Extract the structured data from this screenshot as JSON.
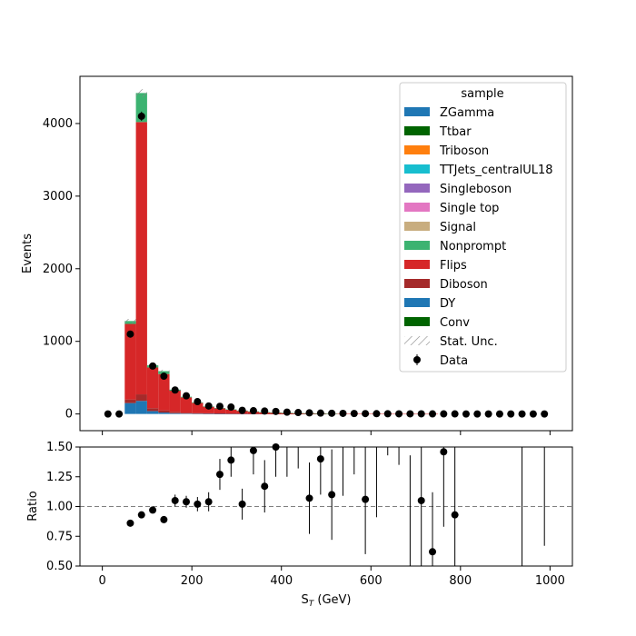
{
  "chart_data": [
    {
      "type": "bar",
      "stacked": true,
      "ylabel": "Events",
      "ylim": [
        -230,
        4650
      ],
      "xlim": [
        -50,
        1050
      ],
      "yticks": [
        0,
        1000,
        2000,
        3000,
        4000
      ],
      "bins": {
        "edges_start": 0,
        "width": 25,
        "count": 40
      },
      "legend": {
        "title": "sample",
        "placement": "top-right"
      },
      "legend_entries": [
        {
          "label": "ZGamma",
          "color": "#1f77b4",
          "kind": "patch"
        },
        {
          "label": "Ttbar",
          "color": "#006400",
          "kind": "patch"
        },
        {
          "label": "Triboson",
          "color": "#ff7f0e",
          "kind": "patch"
        },
        {
          "label": "TTJets_centralUL18",
          "color": "#17becf",
          "kind": "patch"
        },
        {
          "label": "Singleboson",
          "color": "#9467bd",
          "kind": "patch"
        },
        {
          "label": "Single top",
          "color": "#e377c2",
          "kind": "patch"
        },
        {
          "label": "Signal",
          "color": "#c8ad7f",
          "kind": "patch"
        },
        {
          "label": "Nonprompt",
          "color": "#3cb371",
          "kind": "patch"
        },
        {
          "label": "Flips",
          "color": "#d62728",
          "kind": "patch"
        },
        {
          "label": "Diboson",
          "color": "#a52a2a",
          "kind": "patch"
        },
        {
          "label": "DY",
          "color": "#1f77b4",
          "kind": "patch"
        },
        {
          "label": "Conv",
          "color": "#006400",
          "kind": "patch"
        },
        {
          "label": "Stat. Unc.",
          "color": "#888888",
          "kind": "hatch"
        },
        {
          "label": "Data",
          "color": "#000000",
          "kind": "errorbar"
        }
      ],
      "stack_order": [
        "DY",
        "Diboson",
        "Flips",
        "Nonprompt"
      ],
      "series": [
        {
          "name": "DY",
          "color": "#1f77b4",
          "values": [
            0,
            0,
            150,
            180,
            40,
            20,
            10,
            6,
            4,
            3,
            2,
            1,
            1,
            1,
            0,
            0,
            0,
            0,
            0,
            0,
            0,
            0,
            0,
            0,
            0,
            0,
            0,
            0,
            0,
            0,
            0,
            0,
            0,
            0,
            0,
            0,
            0,
            0,
            0,
            0
          ]
        },
        {
          "name": "Diboson",
          "color": "#a52a2a",
          "values": [
            0,
            0,
            50,
            90,
            40,
            30,
            20,
            12,
            8,
            6,
            5,
            4,
            3,
            2,
            2,
            1,
            1,
            1,
            1,
            1,
            0,
            0,
            0,
            0,
            0,
            0,
            0,
            0,
            0,
            0,
            0,
            0,
            0,
            0,
            0,
            0,
            0,
            0,
            0,
            0
          ]
        },
        {
          "name": "Flips",
          "color": "#d62728",
          "values": [
            0,
            0,
            1040,
            3750,
            560,
            500,
            290,
            210,
            140,
            90,
            70,
            55,
            40,
            30,
            22,
            18,
            14,
            10,
            8,
            6,
            5,
            4,
            3,
            2,
            2,
            1,
            1,
            1,
            1,
            1,
            0,
            0,
            0,
            0,
            0,
            0,
            0,
            0,
            0,
            0
          ]
        },
        {
          "name": "Nonprompt",
          "color": "#3cb371",
          "values": [
            0,
            0,
            40,
            400,
            30,
            40,
            15,
            10,
            8,
            6,
            5,
            4,
            3,
            3,
            2,
            2,
            1,
            1,
            1,
            1,
            1,
            0,
            0,
            0,
            0,
            0,
            0,
            0,
            0,
            0,
            0,
            0,
            0,
            0,
            0,
            0,
            0,
            0,
            0,
            0
          ]
        }
      ],
      "data": {
        "x": [
          12.5,
          37.5,
          62.5,
          87.5,
          112.5,
          137.5,
          162.5,
          187.5,
          212.5,
          237.5,
          262.5,
          287.5,
          312.5,
          337.5,
          362.5,
          387.5,
          412.5,
          437.5,
          462.5,
          487.5,
          512.5,
          537.5,
          562.5,
          587.5,
          612.5,
          637.5,
          662.5,
          687.5,
          712.5,
          737.5,
          762.5,
          787.5,
          812.5,
          837.5,
          862.5,
          887.5,
          912.5,
          937.5,
          962.5,
          987.5
        ],
        "y": [
          0,
          0,
          1100,
          4100,
          660,
          520,
          330,
          250,
          170,
          110,
          105,
          95,
          50,
          45,
          40,
          35,
          25,
          20,
          15,
          12,
          10,
          8,
          6,
          5,
          4,
          3,
          2,
          2,
          2,
          1,
          1,
          1,
          0,
          0,
          0,
          0,
          0,
          0,
          0,
          0
        ]
      }
    },
    {
      "type": "scatter",
      "xlabel": "S_T (GeV)",
      "ylabel": "Ratio",
      "xlim": [
        -50,
        1050
      ],
      "ylim": [
        0.5,
        1.5
      ],
      "xticks": [
        0,
        200,
        400,
        600,
        800,
        1000
      ],
      "yticks": [
        0.5,
        0.75,
        1.0,
        1.25,
        1.5
      ],
      "reference_line": 1.0,
      "points": [
        {
          "x": 62.5,
          "y": 0.86,
          "err": 0.01
        },
        {
          "x": 87.5,
          "y": 0.93,
          "err": 0.01
        },
        {
          "x": 112.5,
          "y": 0.97,
          "err": 0.02
        },
        {
          "x": 137.5,
          "y": 0.89,
          "err": 0.02
        },
        {
          "x": 162.5,
          "y": 1.05,
          "err": 0.05
        },
        {
          "x": 187.5,
          "y": 1.04,
          "err": 0.05
        },
        {
          "x": 212.5,
          "y": 1.02,
          "err": 0.06
        },
        {
          "x": 237.5,
          "y": 1.04,
          "err": 0.08
        },
        {
          "x": 262.5,
          "y": 1.27,
          "err": 0.13
        },
        {
          "x": 287.5,
          "y": 1.39,
          "err": 0.14
        },
        {
          "x": 312.5,
          "y": 1.02,
          "err": 0.13
        },
        {
          "x": 337.5,
          "y": 1.47,
          "err": 0.2
        },
        {
          "x": 362.5,
          "y": 1.17,
          "err": 0.22
        },
        {
          "x": 387.5,
          "y": 1.5,
          "err": 0.25
        },
        {
          "x": 462.5,
          "y": 1.07,
          "err": 0.3
        },
        {
          "x": 487.5,
          "y": 1.4,
          "err": 0.3
        },
        {
          "x": 512.5,
          "y": 1.1,
          "err": 0.38
        },
        {
          "x": 587.5,
          "y": 1.06,
          "err": 0.46
        },
        {
          "x": 712.5,
          "y": 1.05,
          "err": 0.6
        },
        {
          "x": 737.5,
          "y": 0.62,
          "err": 0.5
        },
        {
          "x": 762.5,
          "y": 1.46,
          "err": 0.63
        },
        {
          "x": 787.5,
          "y": 0.93,
          "err": 0.7
        }
      ],
      "offscale_errors": [
        {
          "x": 412.5,
          "low": 1.25,
          "high": 1.5
        },
        {
          "x": 437.5,
          "low": 1.32,
          "high": 1.5
        },
        {
          "x": 537.5,
          "low": 1.09,
          "high": 1.5
        },
        {
          "x": 562.5,
          "low": 1.27,
          "high": 1.5
        },
        {
          "x": 612.5,
          "low": 0.91,
          "high": 1.5
        },
        {
          "x": 637.5,
          "low": 1.43,
          "high": 1.5
        },
        {
          "x": 662.5,
          "low": 1.35,
          "high": 1.5
        },
        {
          "x": 687.5,
          "low": 0.5,
          "high": 1.43
        },
        {
          "x": 937.5,
          "low": 0.5,
          "high": 1.5
        },
        {
          "x": 987.5,
          "low": 0.67,
          "high": 1.5
        }
      ]
    }
  ]
}
